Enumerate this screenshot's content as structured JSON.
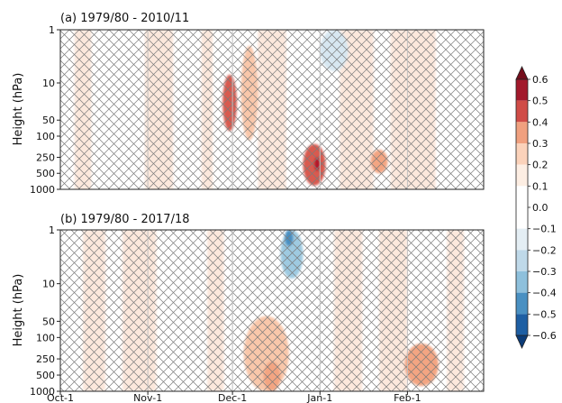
{
  "chart_data": [
    {
      "type": "heatmap",
      "title": "(a) 1979/80 - 2010/11",
      "ylabel": "Height (hPa)",
      "y_scale": "log-pressure",
      "y_ticks": [
        "1",
        "10",
        "50",
        "100",
        "250",
        "500",
        "1000"
      ],
      "y_tick_values": [
        1,
        10,
        50,
        100,
        250,
        500,
        1000
      ],
      "x_ticks": [],
      "xlim": [
        0,
        150
      ],
      "ylim": [
        1000,
        1
      ],
      "hatching": "cross-hatch over most of the domain (non-significant regions)",
      "features": [
        {
          "x_center": 67,
          "x_halfwidth": 3,
          "y_top": 2,
          "y_bottom": 120,
          "value": 0.3
        },
        {
          "x_center": 60,
          "x_halfwidth": 2.5,
          "y_top": 7,
          "y_bottom": 80,
          "value": 0.5
        },
        {
          "x_center": 90,
          "x_halfwidth": 4,
          "y_top": 140,
          "y_bottom": 850,
          "value": 0.5
        },
        {
          "x_center": 91,
          "x_halfwidth": 1,
          "y_top": 250,
          "y_bottom": 450,
          "value": 0.6
        },
        {
          "x_center": 113,
          "x_halfwidth": 3,
          "y_top": 180,
          "y_bottom": 500,
          "value": 0.4
        },
        {
          "x_center": 97,
          "x_halfwidth": 5,
          "y_top": 1,
          "y_bottom": 6,
          "value": -0.2
        }
      ]
    },
    {
      "type": "heatmap",
      "title": "(b) 1979/80 - 2017/18",
      "ylabel": "Height (hPa)",
      "y_scale": "log-pressure",
      "y_ticks": [
        "1",
        "10",
        "50",
        "100",
        "250",
        "500",
        "1000"
      ],
      "y_tick_values": [
        1,
        10,
        50,
        100,
        250,
        500,
        1000
      ],
      "x_ticks": [
        "Oct-1",
        "Nov-1",
        "Dec-1",
        "Jan-1",
        "Feb-1"
      ],
      "x_tick_values": [
        0,
        31,
        61,
        92,
        123
      ],
      "xlim": [
        0,
        150
      ],
      "ylim": [
        1000,
        1
      ],
      "hatching": "cross-hatch over most of the domain (non-significant regions)",
      "features": [
        {
          "x_center": 73,
          "x_halfwidth": 8,
          "y_top": 40,
          "y_bottom": 1000,
          "value": 0.3
        },
        {
          "x_center": 75,
          "x_halfwidth": 3,
          "y_top": 280,
          "y_bottom": 1000,
          "value": 0.4
        },
        {
          "x_center": 128,
          "x_halfwidth": 6,
          "y_top": 130,
          "y_bottom": 800,
          "value": 0.4
        },
        {
          "x_center": 82,
          "x_halfwidth": 4,
          "y_top": 1,
          "y_bottom": 8,
          "value": -0.3
        },
        {
          "x_center": 81,
          "x_halfwidth": 1.5,
          "y_top": 1,
          "y_bottom": 2,
          "value": -0.5
        }
      ]
    }
  ],
  "colorbar": {
    "ticks": [
      "0.6",
      "0.5",
      "0.4",
      "0.3",
      "0.2",
      "0.1",
      "0.0",
      "−0.1",
      "−0.2",
      "−0.3",
      "−0.4",
      "−0.5",
      "−0.6"
    ],
    "tick_values": [
      0.6,
      0.5,
      0.4,
      0.3,
      0.2,
      0.1,
      0.0,
      -0.1,
      -0.2,
      -0.3,
      -0.4,
      -0.5,
      -0.6
    ],
    "colors_top_to_bottom": [
      "#a2192b",
      "#d04c47",
      "#f0a07f",
      "#fbd2ba",
      "#fdeee3",
      "#ffffff",
      "#ffffff",
      "#e4eef4",
      "#bfd9e9",
      "#8ec0dc",
      "#4a90c2",
      "#1e5fa3"
    ],
    "extend_colors": {
      "max": "#750d1c",
      "min": "#0c3c78"
    }
  },
  "colors": {
    "pos_light": "#fce4d6",
    "pos_1": "#f9c7aa",
    "pos_2": "#f3a582",
    "pos_3": "#d85a4f",
    "pos_4": "#b2182b",
    "neg_1": "#d7e7f1",
    "neg_2": "#9ecae1",
    "neg_3": "#4a90c2",
    "hatch": "#777777",
    "axis": "#222222"
  }
}
